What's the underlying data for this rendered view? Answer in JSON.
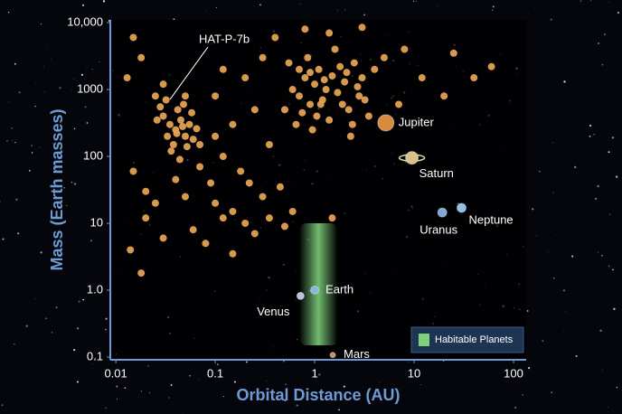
{
  "chart_data": {
    "type": "scatter",
    "x_label": "Orbital Distance (AU)",
    "y_label": "Mass (Earth masses)",
    "log_x": true,
    "log_y": true,
    "xlim": [
      0.0088,
      134
    ],
    "ylim": [
      0.091,
      11000
    ],
    "xticks": [
      0.01,
      0.1,
      1,
      10,
      100
    ],
    "yticks": [
      {
        "value": 10000,
        "label": "10,000"
      },
      1000,
      100,
      10,
      {
        "value": 1,
        "label": "1.0"
      },
      0.1
    ],
    "points": {
      "color": "#e9a556",
      "x": [
        0.03,
        0.035,
        0.04,
        0.045,
        0.05,
        0.038,
        0.042,
        0.048,
        0.055,
        0.06,
        0.032,
        0.036,
        0.044,
        0.052,
        0.058,
        0.028,
        0.026,
        0.047,
        0.041,
        0.065,
        0.07,
        0.03,
        0.025,
        0.05,
        0.033,
        0.015,
        0.02,
        0.014,
        0.018,
        0.025,
        0.04,
        0.06,
        0.08,
        0.1,
        0.12,
        0.05,
        0.03,
        0.15,
        0.2,
        0.25,
        0.35,
        0.5,
        0.3,
        0.09,
        0.07,
        0.018,
        0.015,
        0.013,
        0.02,
        0.1,
        0.12,
        0.15,
        0.2,
        0.25,
        0.3,
        0.35,
        0.4,
        0.12,
        0.18,
        0.22,
        0.1,
        0.6,
        0.7,
        0.8,
        0.9,
        1.0,
        1.1,
        1.2,
        1.3,
        1.5,
        1.7,
        2,
        2.2,
        2.5,
        2.8,
        3,
        3.5,
        0.5,
        0.55,
        0.65,
        0.75,
        0.85,
        0.95,
        1.05,
        1.15,
        1.4,
        1.6,
        1.8,
        2.1,
        2.4,
        2.7,
        3.2,
        4,
        1.25,
        0.9,
        0.7,
        1.9,
        3,
        1.4,
        0.8,
        2.3,
        5,
        7,
        8,
        12,
        25,
        40,
        60,
        20,
        0.6,
        1.5,
        0.45,
        0.15
      ],
      "y": [
        400,
        300,
        250,
        350,
        200,
        150,
        500,
        600,
        300,
        180,
        700,
        120,
        90,
        140,
        450,
        550,
        350,
        280,
        220,
        260,
        150,
        1200,
        800,
        800,
        200,
        60,
        12,
        4,
        1.8,
        20,
        45,
        8,
        5,
        20,
        12,
        25,
        6,
        3.5,
        10,
        7,
        12,
        9,
        25,
        40,
        70,
        3000,
        6000,
        1500,
        30,
        800,
        2000,
        300,
        1500,
        500,
        3000,
        150,
        6000,
        100,
        60,
        40,
        200,
        1000,
        800,
        1500,
        600,
        1200,
        2000,
        700,
        1000,
        1600,
        900,
        1300,
        500,
        2500,
        800,
        1500,
        400,
        500,
        2500,
        300,
        450,
        3000,
        250,
        400,
        600,
        350,
        4000,
        2200,
        1800,
        300,
        1100,
        700,
        2000,
        1400,
        1800,
        2000,
        600,
        8500,
        7000,
        8000,
        200,
        3000,
        600,
        4000,
        1500,
        3500,
        1500,
        2200,
        800,
        15,
        12,
        35,
        15
      ]
    },
    "solar_planets": {
      "names": [
        "Venus",
        "Earth",
        "Mars",
        "Jupiter",
        "Saturn",
        "Uranus",
        "Neptune"
      ],
      "x": [
        0.72,
        1,
        1.52,
        5.2,
        9.5,
        19.2,
        30
      ],
      "y": [
        0.82,
        1,
        0.107,
        318,
        95,
        14.5,
        17
      ],
      "colors": [
        "#b9c4d8",
        "#8fb4e0",
        "#d98a5a",
        "#d98a40",
        "#d8c28a",
        "#7fa8d8",
        "#8fc0e8"
      ]
    },
    "annotations": [
      {
        "text": "HAT-P-7b",
        "x": 0.035,
        "y": 710
      }
    ],
    "habitable_zone": {
      "label": "Habitable Planets",
      "color": "#7ed07a",
      "xlim": [
        0.7,
        1.7
      ],
      "ylim": [
        0.15,
        10
      ]
    }
  }
}
